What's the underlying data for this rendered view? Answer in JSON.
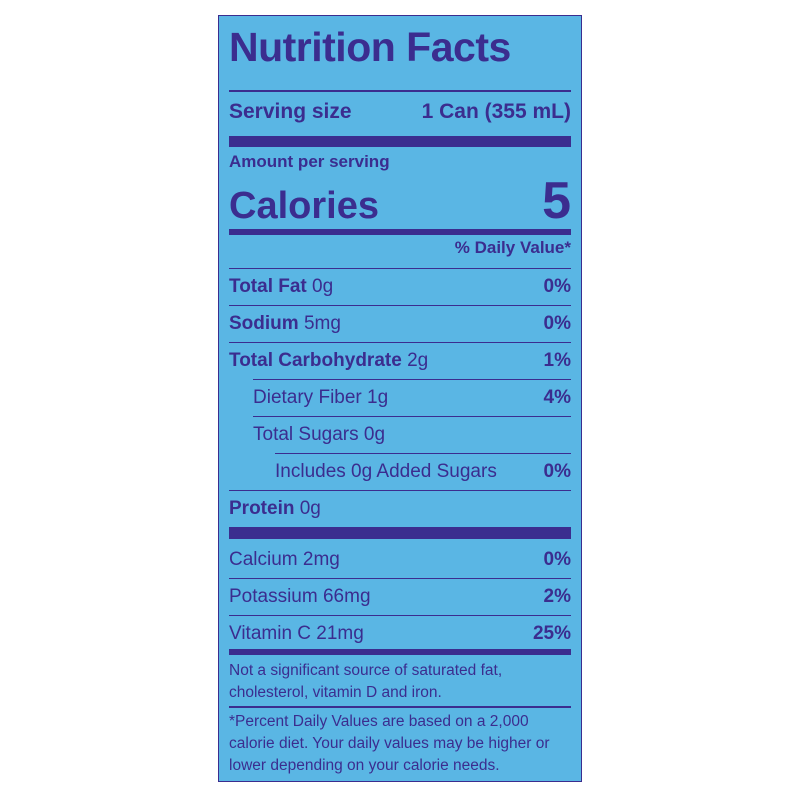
{
  "header": {
    "title": "Nutrition Facts",
    "serving_label": "Serving size",
    "serving_value": "1 Can (355 mL)"
  },
  "calories": {
    "amount_label": "Amount per serving",
    "label": "Calories",
    "value": "5"
  },
  "dv_header": "% Daily Value*",
  "nutrients": [
    {
      "name": "Total Fat",
      "amount": "0g",
      "dv": "0%"
    },
    {
      "name": "Sodium",
      "amount": "5mg",
      "dv": "0%"
    },
    {
      "name": "Total Carbohydrate",
      "amount": "2g",
      "dv": "1%"
    },
    {
      "name": "Dietary Fiber 1g",
      "dv": "4%"
    },
    {
      "name": "Total Sugars 0g"
    },
    {
      "name": "Includes 0g Added Sugars",
      "dv": "0%"
    },
    {
      "name": "Protein",
      "amount": "0g"
    }
  ],
  "vitamins": [
    {
      "name": "Calcium 2mg",
      "dv": "0%"
    },
    {
      "name": "Potassium 66mg",
      "dv": "2%"
    },
    {
      "name": "Vitamin C 21mg",
      "dv": "25%"
    }
  ],
  "footnotes": [
    "Not a significant source of saturated fat, cholesterol, vitamin D and iron.",
    "*Percent Daily Values are based on a 2,000 calorie diet. Your daily values may be higher or lower depending on your calorie needs."
  ]
}
